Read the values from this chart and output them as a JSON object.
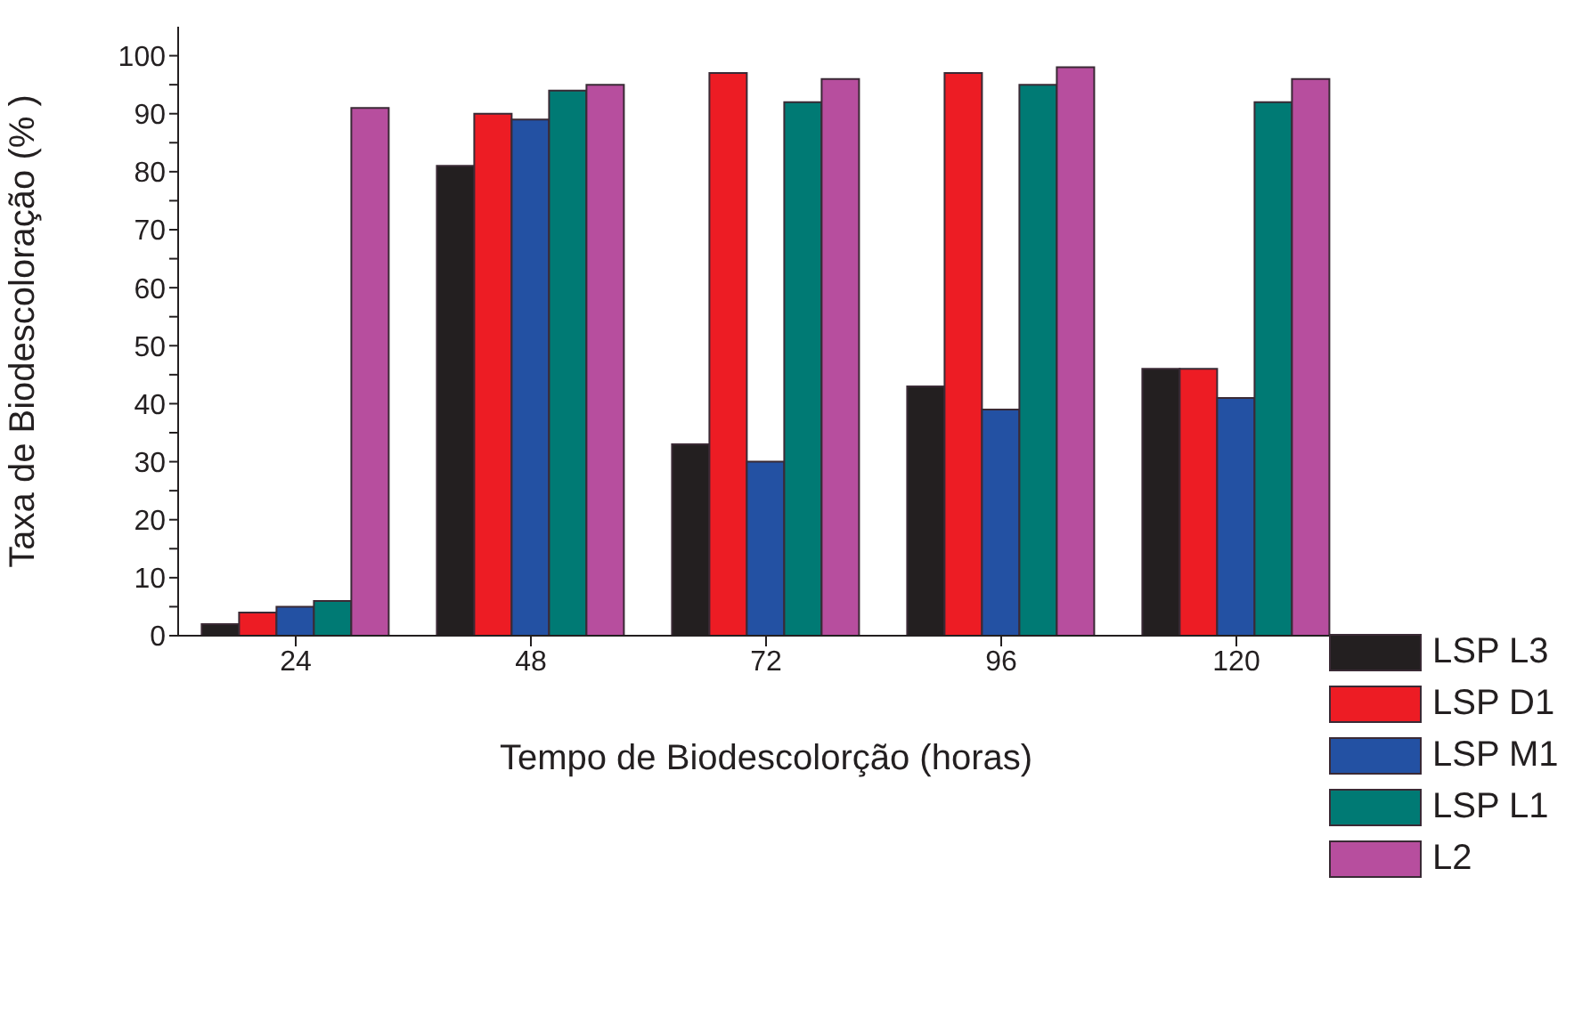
{
  "chart_data": {
    "type": "bar",
    "xlabel": "Tempo de Biodescolorção (horas)",
    "ylabel": "Taxa de Biodescoloração (% )",
    "categories": [
      "24",
      "48",
      "72",
      "96",
      "120"
    ],
    "series": [
      {
        "name": "LSP L3",
        "color": "#231f20",
        "values": [
          2,
          81,
          33,
          43,
          46
        ]
      },
      {
        "name": "LSP D1",
        "color": "#ed1c24",
        "values": [
          4,
          90,
          97,
          97,
          46
        ]
      },
      {
        "name": "LSP M1",
        "color": "#2351a3",
        "values": [
          5,
          89,
          30,
          39,
          41
        ]
      },
      {
        "name": "LSP L1",
        "color": "#007a74",
        "values": [
          6,
          94,
          92,
          95,
          92
        ]
      },
      {
        "name": "L2",
        "color": "#b74e9e",
        "values": [
          91,
          95,
          96,
          98,
          96
        ]
      }
    ],
    "ylim": [
      0,
      105
    ],
    "yticks": [
      0,
      {
        "value": 5,
        "label": null
      },
      10,
      {
        "value": 15,
        "label": null
      },
      20,
      {
        "value": 25,
        "label": null
      },
      30,
      {
        "value": 35,
        "label": null
      },
      40,
      {
        "value": 45,
        "label": null
      },
      50,
      {
        "value": 55,
        "label": null
      },
      60,
      {
        "value": 65,
        "label": null
      },
      70,
      {
        "value": 75,
        "label": null
      },
      80,
      {
        "value": 85,
        "label": null
      },
      90,
      {
        "value": 95,
        "label": null
      },
      100
    ],
    "grid": false,
    "legend": "bottom right"
  }
}
